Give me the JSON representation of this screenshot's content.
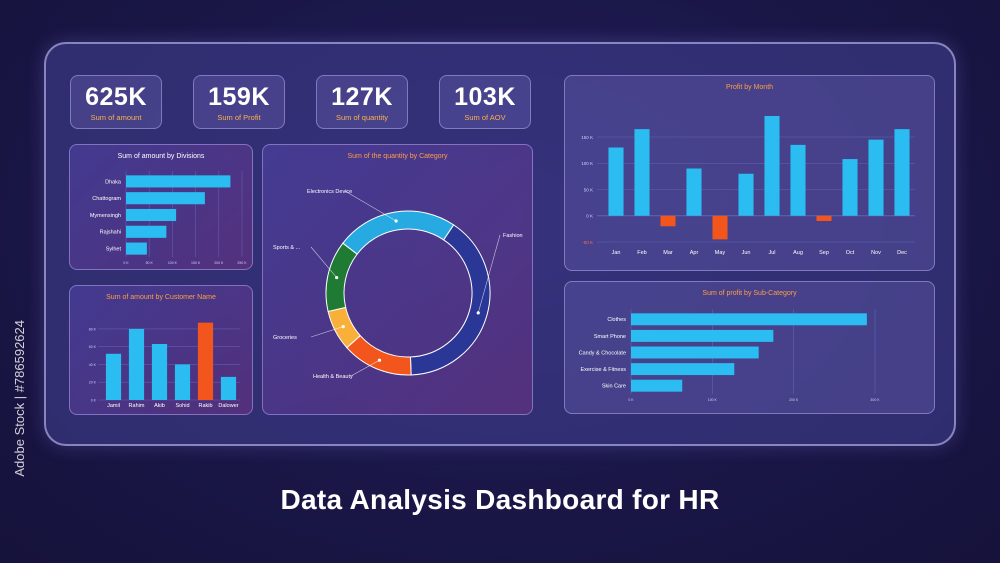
{
  "headline": "Data Analysis Dashboard for HR",
  "watermark": "Adobe Stock | #786592624",
  "kpis": [
    {
      "value": "625K",
      "label": "Sum of amount"
    },
    {
      "value": "159K",
      "label": "Sum of Profit"
    },
    {
      "value": "127K",
      "label": "Sum of quantity"
    },
    {
      "value": "103K",
      "label": "Sum of AOV"
    }
  ],
  "colors": {
    "bar": "#2bbcf2",
    "negative": "#f2561d",
    "highlight": "#f2561d",
    "title_accent": "#ff9f43"
  },
  "chart_data": [
    {
      "id": "divisions",
      "type": "bar",
      "orientation": "horizontal",
      "title": "Sum of amount by Divisions",
      "categories": [
        "Dhaka",
        "Chattogram",
        "Mymensingh",
        "Rajshahi",
        "Sylhet"
      ],
      "values": [
        225,
        170,
        108,
        87,
        45
      ],
      "xticks": [
        "0 K",
        "50 K",
        "100 K",
        "150 K",
        "200 K",
        "250 K"
      ],
      "xlim": [
        0,
        250
      ]
    },
    {
      "id": "customers",
      "type": "bar",
      "title": "Sum of amount by Customer Name",
      "categories": [
        "Jamil",
        "Rahim",
        "Akib",
        "Sohid",
        "Rakib",
        "Dalower"
      ],
      "values": [
        52,
        80,
        63,
        40,
        87,
        26
      ],
      "yticks": [
        "0 K",
        "20 K",
        "40 K",
        "60 K",
        "80 K"
      ],
      "ylim": [
        0,
        90
      ],
      "highlight_index": 4
    },
    {
      "id": "category",
      "type": "pie",
      "title": "Sum of the quantity by Category",
      "labels": [
        "Fashion",
        "Health & Beauty",
        "Groceries",
        "Sports & ...",
        "Electronics Device"
      ],
      "values": [
        40,
        14,
        8,
        14,
        24
      ],
      "colors": [
        "#2b3796",
        "#f2561d",
        "#f8b03b",
        "#1f7a34",
        "#27a9e1"
      ]
    },
    {
      "id": "profit_month",
      "type": "bar",
      "title": "Profit by Month",
      "categories": [
        "Jan",
        "Feb",
        "Mar",
        "Apr",
        "May",
        "Jun",
        "Jul",
        "Aug",
        "Sep",
        "Oct",
        "Nov",
        "Dec"
      ],
      "values": [
        130,
        165,
        -20,
        90,
        -45,
        80,
        190,
        135,
        -10,
        108,
        145,
        165
      ],
      "yticks": [
        "-50 K",
        "0 K",
        "50 K",
        "100 K",
        "150 K"
      ],
      "ylim": [
        -50,
        190
      ]
    },
    {
      "id": "subcategory",
      "type": "bar",
      "orientation": "horizontal",
      "title": "Sum of profit by Sub-Category",
      "categories": [
        "Clothes",
        "Smart Phone",
        "Candy & Chocolate",
        "Exercise & Fitness",
        "Skin Care"
      ],
      "values": [
        290,
        175,
        157,
        127,
        63
      ],
      "xticks": [
        "0 K",
        "100 K",
        "200 K",
        "300 K"
      ],
      "xlim": [
        0,
        300
      ]
    }
  ]
}
